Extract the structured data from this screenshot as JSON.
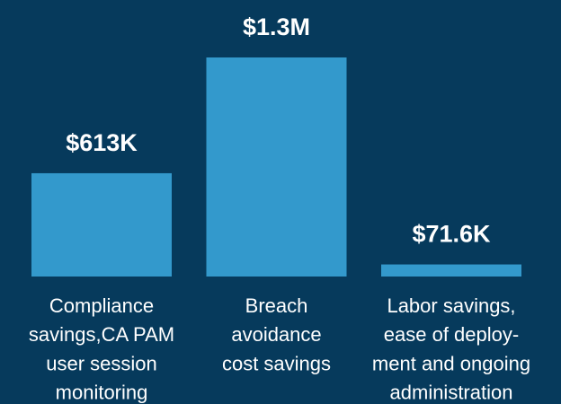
{
  "chart_data": {
    "type": "bar",
    "categories": [
      [
        "Compliance",
        "savings,CA PAM",
        "user session",
        "monitoring"
      ],
      [
        "Breach",
        "avoidance",
        "cost savings"
      ],
      [
        "Labor savings,",
        "ease of deploy-",
        "ment and ongoing",
        "administration"
      ]
    ],
    "values": [
      613000,
      1300000,
      71600
    ],
    "value_labels": [
      "$613K",
      "$1.3M",
      "$71.6K"
    ],
    "color": "#3399cc"
  }
}
